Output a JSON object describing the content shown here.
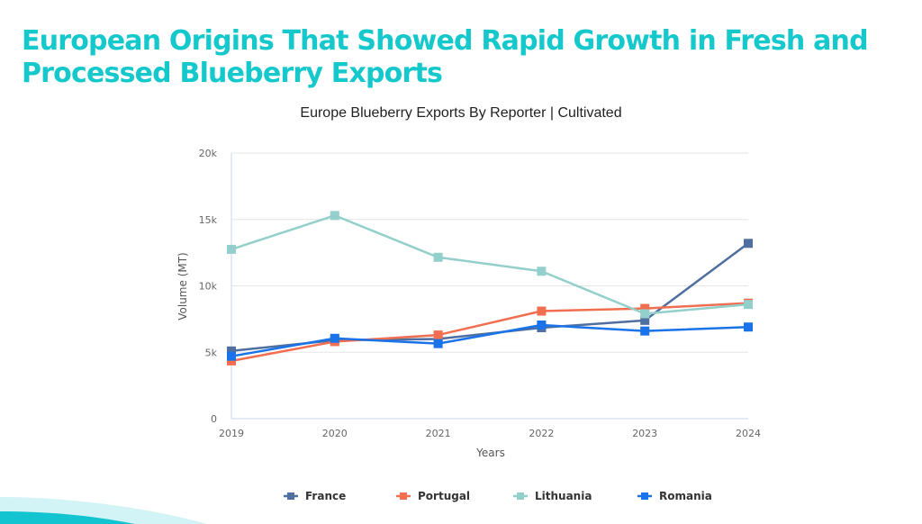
{
  "page": {
    "title": "European Origins That Showed Rapid Growth in Fresh and Processed Blueberry Exports"
  },
  "chart_data": {
    "type": "line",
    "title": "Europe Blueberry Exports By Reporter | Cultivated",
    "xlabel": "Years",
    "ylabel": "Volume (MT)",
    "categories": [
      "2019",
      "2020",
      "2021",
      "2022",
      "2023",
      "2024"
    ],
    "ylim": [
      0,
      20000
    ],
    "yticks": [
      0,
      5000,
      10000,
      15000,
      20000
    ],
    "ytick_labels": [
      "0",
      "5k",
      "10k",
      "15k",
      "20k"
    ],
    "grid": true,
    "legend_position": "bottom",
    "series": [
      {
        "name": "France",
        "color": "#4f6fa0",
        "values": [
          5100,
          5900,
          6000,
          6850,
          7400,
          13200
        ]
      },
      {
        "name": "Portugal",
        "color": "#f26e50",
        "values": [
          4350,
          5800,
          6300,
          8100,
          8300,
          8700
        ]
      },
      {
        "name": "Lithuania",
        "color": "#93cfcb",
        "values": [
          12750,
          15300,
          12150,
          11100,
          7900,
          8600
        ]
      },
      {
        "name": "Romania",
        "color": "#1a73e8",
        "values": [
          4700,
          6050,
          5650,
          7050,
          6600,
          6900
        ]
      }
    ]
  },
  "decor": {
    "wave_light": "#d3f4f6",
    "wave_dark": "#11c4d0"
  }
}
